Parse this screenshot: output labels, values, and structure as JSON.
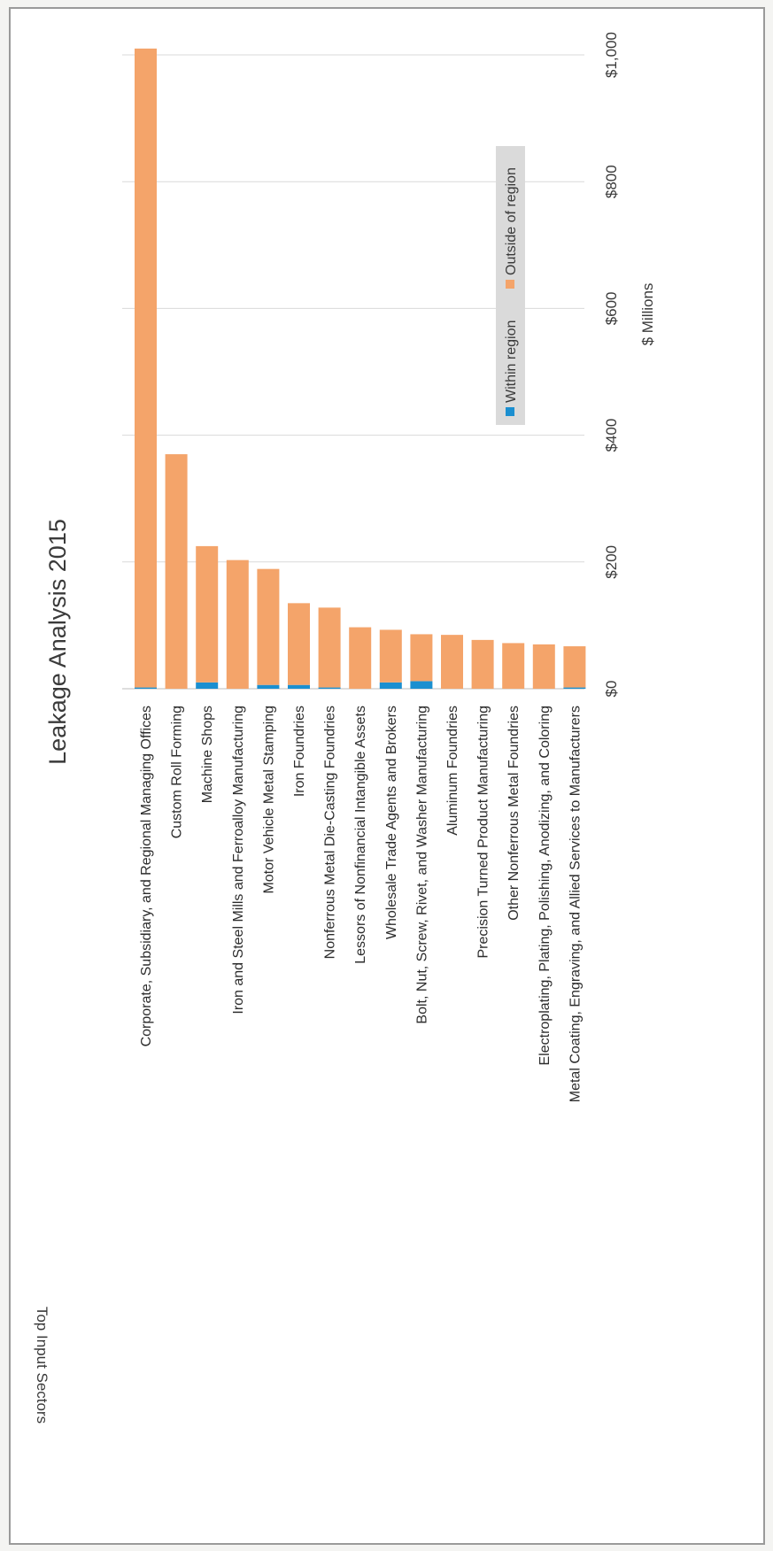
{
  "chart_data": {
    "type": "bar",
    "orientation": "stacked bar, rotated page",
    "title": "Leakage Analysis 2015",
    "xlabel": "Top Input Sectors",
    "ylabel": "$ Millions",
    "ylim": [
      0,
      1000
    ],
    "yticks": [
      "$0",
      "$200",
      "$400",
      "$600",
      "$800",
      "$1,000"
    ],
    "grid": true,
    "legend_position": "upper-right",
    "categories": [
      "Corporate, Subsidiary, and Regional Managing Offices",
      "Custom Roll Forming",
      "Machine Shops",
      "Iron and Steel Mills and Ferroalloy Manufacturing",
      "Motor Vehicle Metal Stamping",
      "Iron Foundries",
      "Nonferrous Metal Die-Casting Foundries",
      "Lessors of Nonfinancial Intangible Assets",
      "Wholesale Trade Agents and Brokers",
      "Bolt, Nut, Screw, Rivet, and Washer Manufacturing",
      "Aluminum Foundries",
      "Precision Turned Product Manufacturing",
      "Other Nonferrous Metal Foundries",
      "Electroplating, Plating, Polishing, Anodizing, and Coloring",
      "Metal Coating, Engraving, and Allied Services to Manufacturers"
    ],
    "series": [
      {
        "name": "Within region",
        "color": "#1b8fd0",
        "values": [
          2,
          0,
          10,
          0,
          6,
          6,
          2,
          0,
          10,
          12,
          0,
          0,
          0,
          0,
          2
        ]
      },
      {
        "name": "Outside of region",
        "color": "#f4a46a",
        "values": [
          1008,
          370,
          215,
          203,
          183,
          129,
          126,
          97,
          83,
          74,
          85,
          77,
          72,
          70,
          65
        ]
      }
    ]
  }
}
